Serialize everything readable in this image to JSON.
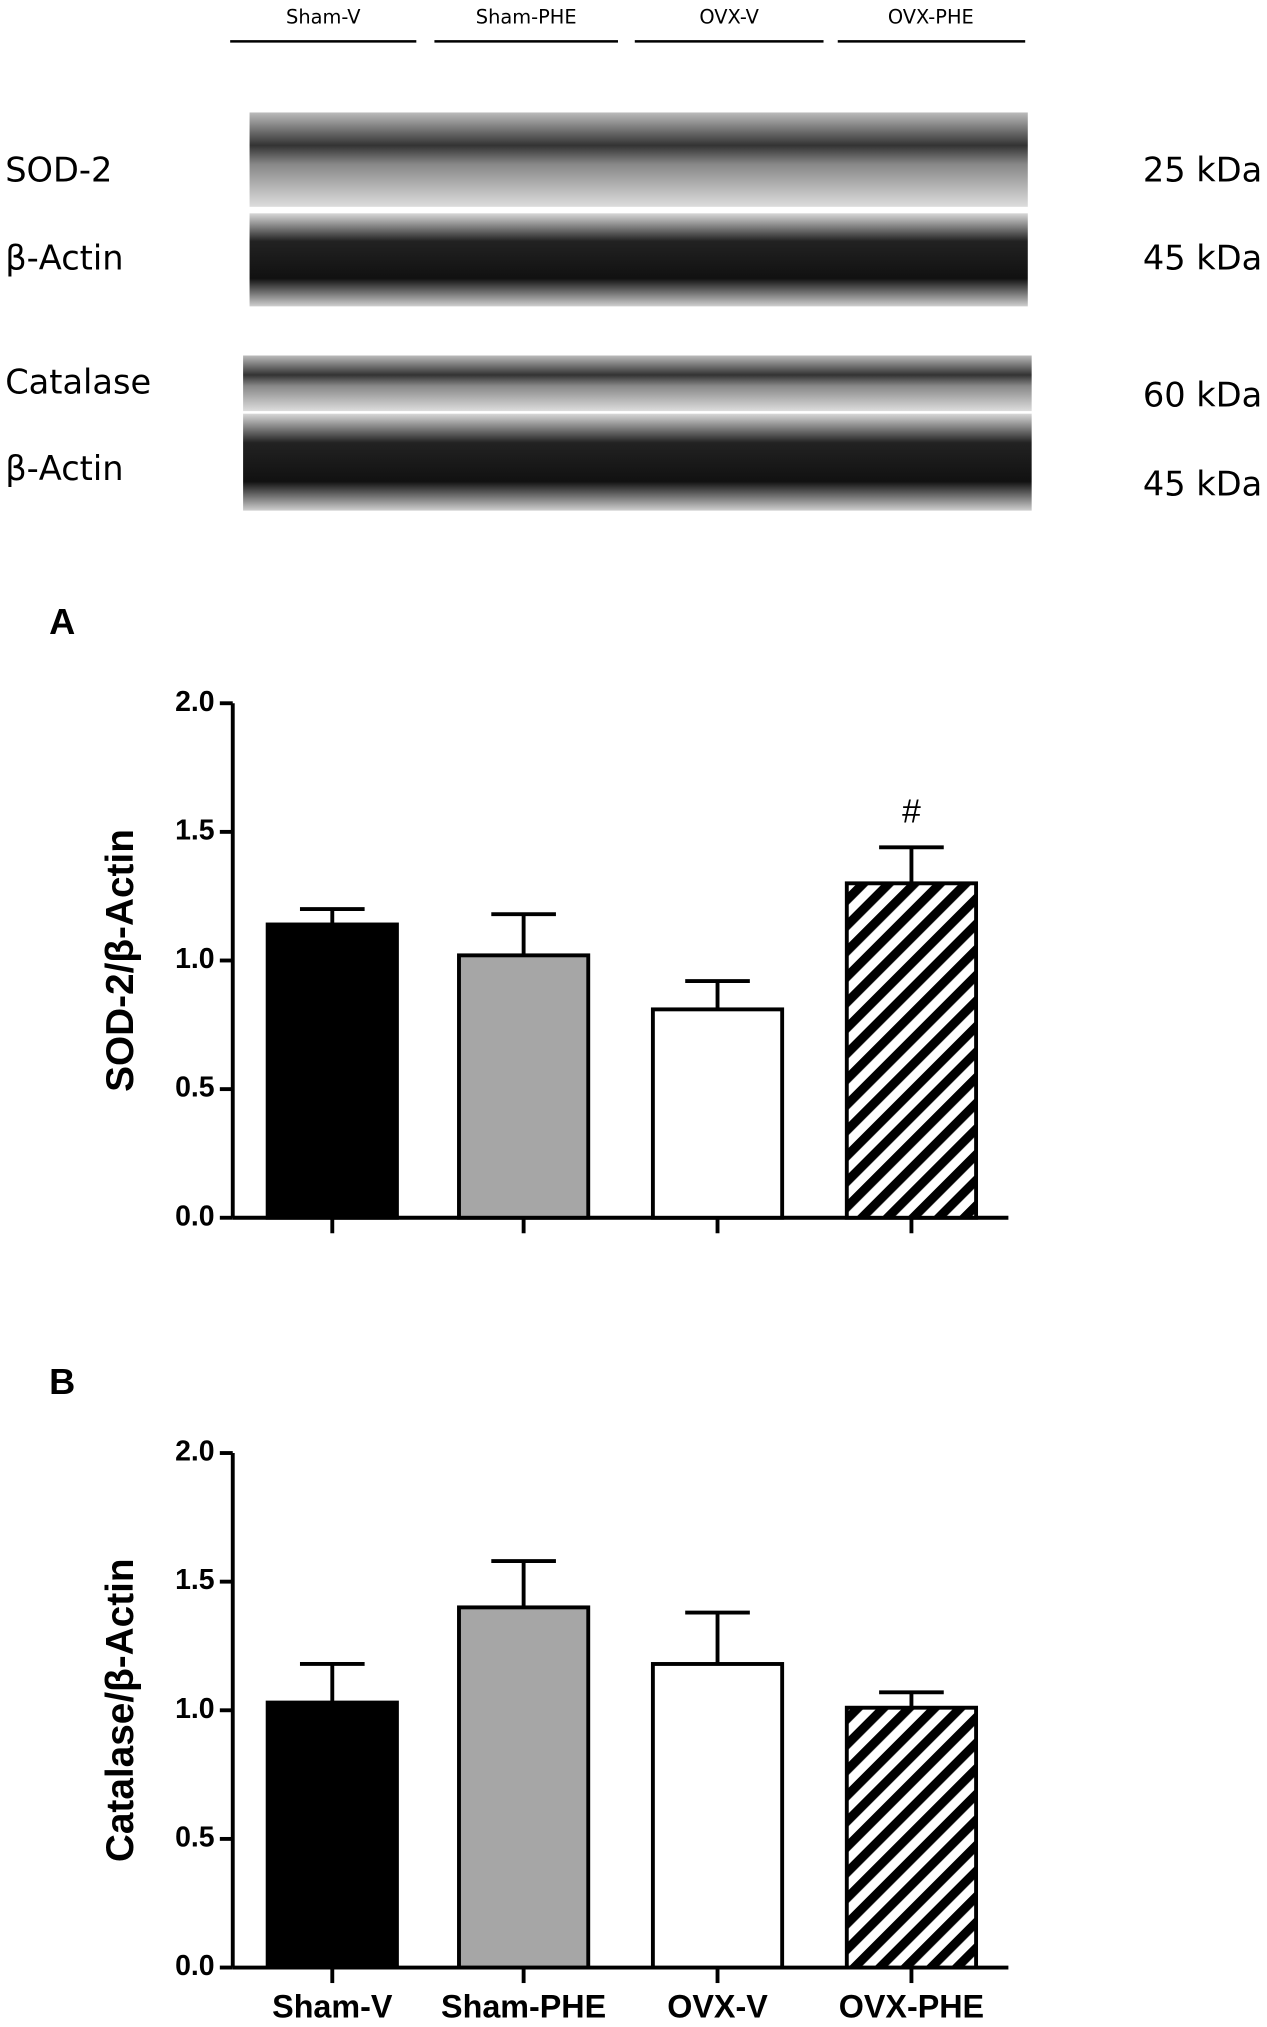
{
  "blot": {
    "lanes": [
      "Sham-V",
      "Sham-PHE",
      "OVX-V",
      "OVX-PHE"
    ],
    "rows": [
      {
        "protein": "SOD-2",
        "weight": "25 kDa"
      },
      {
        "protein": "β-Actin",
        "weight": "45 kDa"
      },
      {
        "protein": "Catalase",
        "weight": "60 kDa"
      },
      {
        "protein": "β-Actin",
        "weight": "45 kDa"
      }
    ]
  },
  "chart_data": [
    {
      "type": "bar",
      "panel": "A",
      "y_label": "SOD-2/β-Actin",
      "categories": [
        null,
        null,
        null,
        null
      ],
      "values": [
        1.14,
        1.02,
        0.81,
        1.3
      ],
      "errors": [
        0.06,
        0.16,
        0.11,
        0.14
      ],
      "fills": [
        "#000000",
        "#a6a6a6",
        "#ffffff",
        "#ffffff"
      ],
      "hatched": [
        false,
        false,
        false,
        true
      ],
      "annotations": [
        {
          "text": "#",
          "index": 3
        }
      ],
      "ylim": [
        0,
        2.0
      ],
      "yticks": [
        {
          "value": 0,
          "label": "0.0"
        },
        {
          "value": 0.5,
          "label": "0.5"
        },
        {
          "value": 1,
          "label": "1.0"
        },
        {
          "value": 1.5,
          "label": "1.5"
        },
        {
          "value": 2,
          "label": "2.0"
        }
      ]
    },
    {
      "type": "bar",
      "panel": "B",
      "y_label": "Catalase/β-Actin",
      "categories": [
        "Sham-V",
        "Sham-PHE",
        "OVX-V",
        "OVX-PHE"
      ],
      "values": [
        1.03,
        1.4,
        1.18,
        1.01
      ],
      "errors": [
        0.15,
        0.18,
        0.2,
        0.06
      ],
      "fills": [
        "#000000",
        "#a6a6a6",
        "#ffffff",
        "#ffffff"
      ],
      "hatched": [
        false,
        false,
        false,
        true
      ],
      "ylim": [
        0,
        2.0
      ],
      "yticks": [
        {
          "value": 0,
          "label": "0.0"
        },
        {
          "value": 0.5,
          "label": "0.5"
        },
        {
          "value": 1,
          "label": "1.0"
        },
        {
          "value": 1.5,
          "label": "1.5"
        },
        {
          "value": 2,
          "label": "2.0"
        }
      ]
    }
  ]
}
